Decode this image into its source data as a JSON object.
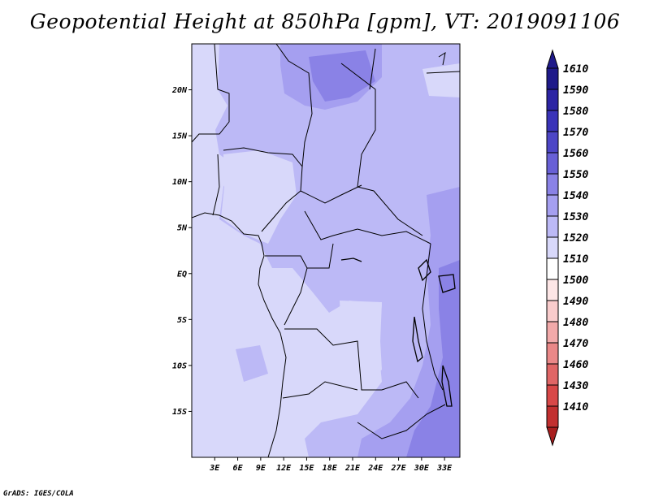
{
  "title": "Geopotential Height at 850hPa [gpm], VT: 2019091106",
  "credit": "GrADS: IGES/COLA",
  "map": {
    "projection": "latlon",
    "lon_range": [
      0,
      35
    ],
    "lat_range": [
      -20,
      25
    ],
    "lat_ticks": [
      {
        "value": 20,
        "label": "20N"
      },
      {
        "value": 15,
        "label": "15N"
      },
      {
        "value": 10,
        "label": "10N"
      },
      {
        "value": 5,
        "label": "5N"
      },
      {
        "value": 0,
        "label": "EQ"
      },
      {
        "value": -5,
        "label": "5S"
      },
      {
        "value": -10,
        "label": "10S"
      },
      {
        "value": -15,
        "label": "15S"
      }
    ],
    "lon_ticks": [
      {
        "value": 3,
        "label": "3E"
      },
      {
        "value": 6,
        "label": "6E"
      },
      {
        "value": 9,
        "label": "9E"
      },
      {
        "value": 12,
        "label": "12E"
      },
      {
        "value": 15,
        "label": "15E"
      },
      {
        "value": 18,
        "label": "18E"
      },
      {
        "value": 21,
        "label": "21E"
      },
      {
        "value": 24,
        "label": "24E"
      },
      {
        "value": 27,
        "label": "27E"
      },
      {
        "value": 30,
        "label": "30E"
      },
      {
        "value": 33,
        "label": "33E"
      }
    ]
  },
  "colorbar": {
    "levels": [
      {
        "label": "1610",
        "color": "#1f1a8a"
      },
      {
        "label": "1590",
        "color": "#2c24a4"
      },
      {
        "label": "1580",
        "color": "#3a33b8"
      },
      {
        "label": "1570",
        "color": "#4d46c6"
      },
      {
        "label": "1560",
        "color": "#6860d6"
      },
      {
        "label": "1550",
        "color": "#8a82e6"
      },
      {
        "label": "1540",
        "color": "#a59ff0"
      },
      {
        "label": "1530",
        "color": "#bcb9f6"
      },
      {
        "label": "1520",
        "color": "#d8d8fa"
      },
      {
        "label": "1510",
        "color": "#ffffff"
      },
      {
        "label": "1500",
        "color": "#fde6e6"
      },
      {
        "label": "1490",
        "color": "#f9cccc"
      },
      {
        "label": "1480",
        "color": "#f2aaaa"
      },
      {
        "label": "1470",
        "color": "#ea8888"
      },
      {
        "label": "1460",
        "color": "#e06666"
      },
      {
        "label": "1430",
        "color": "#d84848"
      },
      {
        "label": "1410",
        "color": "#c23030"
      }
    ],
    "bottom_color": "#a81e1e"
  }
}
